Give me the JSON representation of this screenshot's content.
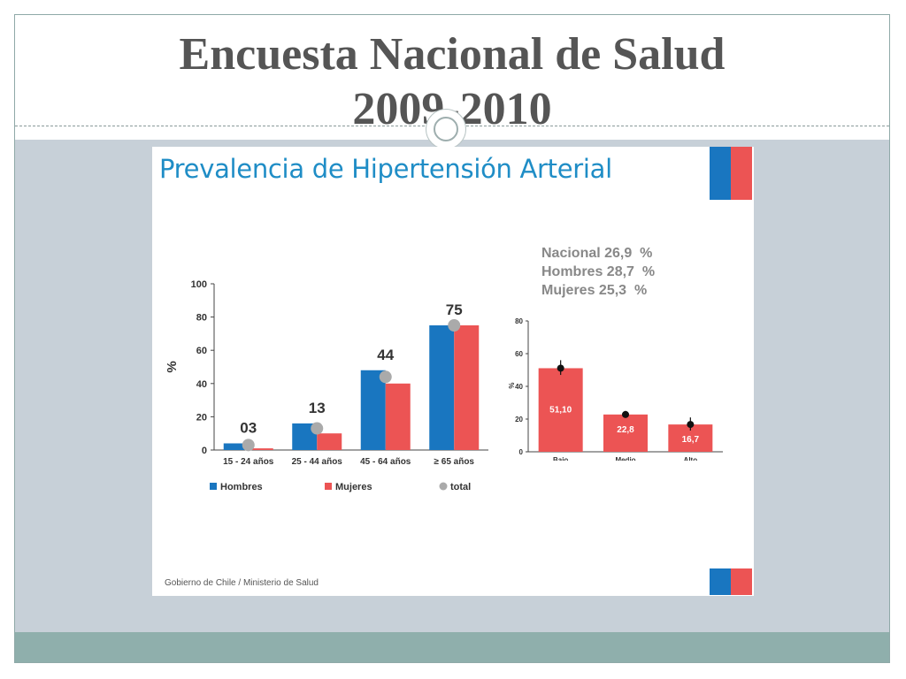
{
  "slide": {
    "title_line1": "Encuesta Nacional de Salud",
    "title_line2": "2009-2010"
  },
  "panel": {
    "title": "Prevalencia de Hipertensión Arterial",
    "footer": "Gobierno de Chile / Ministerio de Salud"
  },
  "stats": [
    "Nacional 26,9  %",
    "Hombres 28,7  %",
    "Mujeres 25,3  %"
  ],
  "colors": {
    "hombres": "#1976c0",
    "mujeres": "#ec5454",
    "total": "#aaaaaa"
  },
  "chart_data": [
    {
      "type": "bar",
      "ylabel": "%",
      "ylim": [
        0,
        100
      ],
      "yticks": [
        "0",
        "20",
        "40",
        "60",
        "80",
        "100"
      ],
      "categories": [
        "15 - 24 años",
        "25 - 44 años",
        "45 - 64 años",
        "≥ 65 años"
      ],
      "series": [
        {
          "name": "Hombres",
          "values": [
            4,
            16,
            48,
            75
          ]
        },
        {
          "name": "Mujeres",
          "values": [
            1,
            10,
            40,
            75
          ]
        },
        {
          "name": "total",
          "values": [
            3,
            13,
            44,
            75
          ]
        }
      ],
      "data_labels": [
        "03",
        "13",
        "44",
        "75"
      ],
      "legend": "bottom",
      "grid": false
    },
    {
      "type": "bar",
      "ylabel": "%",
      "ylim": [
        0,
        80
      ],
      "yticks": [
        "0",
        "20",
        "40",
        "60",
        "80"
      ],
      "categories": [
        "Bajo",
        "Medio",
        "Alto"
      ],
      "values": [
        51.1,
        22.8,
        16.7
      ],
      "data_labels": [
        "51,10",
        "22,8",
        "16,7"
      ],
      "error_bars": [
        [
          47,
          56
        ],
        [
          21,
          25
        ],
        [
          13,
          21
        ]
      ],
      "grid": false
    }
  ]
}
